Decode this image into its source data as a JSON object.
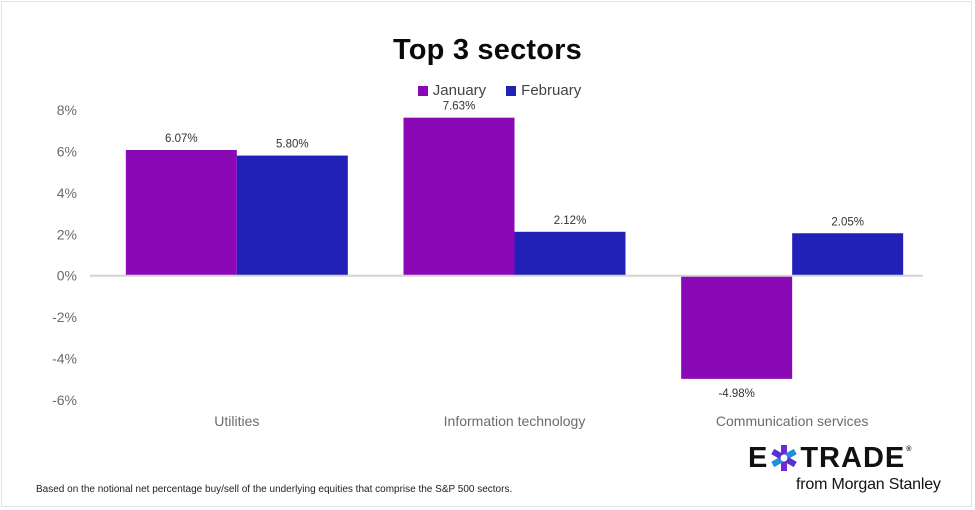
{
  "chart_data": {
    "type": "bar",
    "title": "Top 3 sectors",
    "xlabel": "",
    "ylabel": "",
    "categories": [
      "Utilities",
      "Information technology",
      "Communication services"
    ],
    "series": [
      {
        "name": "January",
        "color": "#8a08b6",
        "values": [
          6.07,
          7.63,
          -4.98
        ],
        "labels": [
          "6.07%",
          "7.63%",
          "-4.98%"
        ]
      },
      {
        "name": "February",
        "color": "#2121b8",
        "values": [
          5.8,
          2.12,
          2.05
        ],
        "labels": [
          "5.80%",
          "2.12%",
          "2.05%"
        ]
      }
    ],
    "ylim": [
      -6,
      8
    ],
    "yticks": [
      8,
      6,
      4,
      2,
      0,
      -2,
      -4,
      -6
    ],
    "ytick_labels": [
      "8%",
      "6%",
      "4%",
      "2%",
      "0%",
      "-2%",
      "-4%",
      "-6%"
    ],
    "grid": false,
    "legend_position": "top-center"
  },
  "footnote": "Based on the notional net percentage buy/sell of the underlying equities that comprise the S&P 500 sectors.",
  "logo": {
    "left_text": "E",
    "right_text": "TRADE",
    "registered": "®",
    "subtitle": "from Morgan Stanley",
    "icon": "etrade-star-icon"
  }
}
